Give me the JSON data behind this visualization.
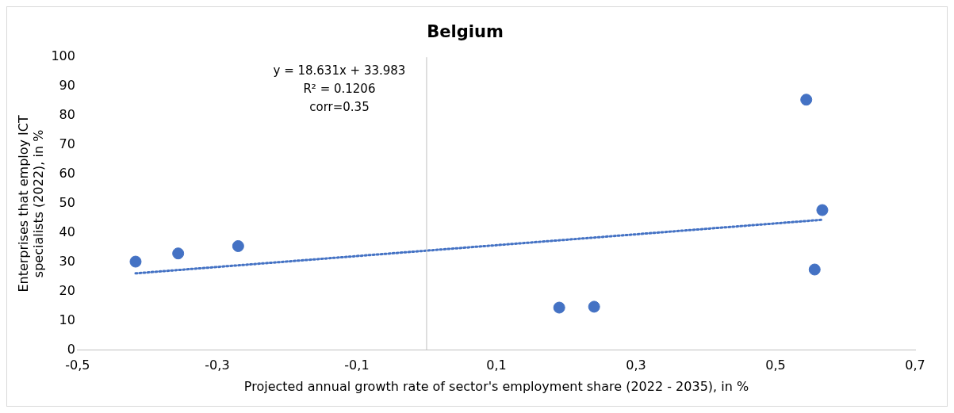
{
  "chart_data": {
    "type": "scatter",
    "title": "Belgium",
    "xlabel": "Projected annual growth rate of sector's employment share (2022 - 2035), in %",
    "ylabel": "Enterprises that employ ICT specialists (2022), in %",
    "annotations": [
      "y = 18.631x + 33.983",
      "R² = 0.1206",
      "corr=0.35"
    ],
    "series": [
      {
        "type": "scatter",
        "color": "#4472c4",
        "x": [
          -0.417,
          -0.356,
          -0.27,
          0.19,
          0.24,
          0.544,
          0.567,
          0.556
        ],
        "values": [
          30.2,
          33,
          35.5,
          14.5,
          14.8,
          85.5,
          47.8,
          27.5
        ]
      },
      {
        "type": "line",
        "color": "#4472c4",
        "line_style": "dotted",
        "marker": "none",
        "x": [
          -0.417,
          0.567
        ],
        "values": [
          26.2,
          44.5
        ]
      }
    ],
    "xlim": [
      -0.5,
      0.7
    ],
    "xticks": [
      {
        "value": -0.5,
        "label": "-0,5"
      },
      {
        "value": -0.3,
        "label": "-0,3"
      },
      {
        "value": -0.1,
        "label": "-0,1"
      },
      {
        "value": 0.1,
        "label": "0,1"
      },
      {
        "value": 0.3,
        "label": "0,3"
      },
      {
        "value": 0.5,
        "label": "0,5"
      },
      {
        "value": 0.7,
        "label": "0,7"
      }
    ],
    "ylim": [
      0,
      100
    ],
    "yticks": [
      0,
      10,
      20,
      30,
      40,
      50,
      60,
      70,
      80,
      90,
      100
    ],
    "ref_lines": [
      {
        "axis": "x",
        "value": 0,
        "color": "#bfbfbf"
      }
    ],
    "marker": "circle",
    "legend": false,
    "grid": false
  }
}
